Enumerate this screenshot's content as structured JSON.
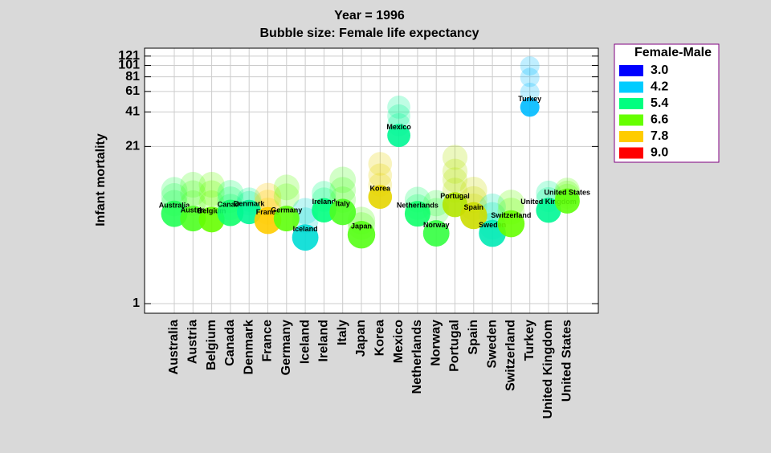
{
  "chart_data": {
    "type": "bubble",
    "title": "Year = 1996",
    "subtitle": "Bubble size: Female life expectancy",
    "y_label": "Infant mortality",
    "log_y": true,
    "grid": true,
    "ylim": [
      0.83,
      141
    ],
    "yticks": [
      1,
      21,
      41,
      61,
      81,
      101,
      121
    ],
    "categories": [
      "Australia",
      "Austria",
      "Belgium",
      "Canada",
      "Denmark",
      "France",
      "Germany",
      "Iceland",
      "Ireland",
      "Italy",
      "Japan",
      "Korea",
      "Mexico",
      "Netherlands",
      "Norway",
      "Portugal",
      "Spain",
      "Sweden",
      "Switzerland",
      "Turkey",
      "United Kingdom",
      "United States"
    ],
    "values": [
      5.7,
      5.2,
      5.1,
      5.8,
      5.9,
      5.0,
      5.2,
      3.6,
      6.1,
      5.9,
      3.8,
      7.9,
      26,
      5.7,
      3.9,
      6.8,
      5.5,
      3.9,
      4.7,
      45,
      6.1,
      7.3
    ],
    "sizes": [
      81,
      80,
      80,
      81,
      78,
      82,
      80,
      81,
      78,
      81,
      83,
      77,
      76,
      80,
      81,
      79,
      82,
      82,
      82,
      70,
      79,
      79
    ],
    "color_values": [
      5.8,
      6.3,
      6.6,
      5.6,
      5.2,
      7.8,
      6.5,
      4.6,
      5.4,
      6.3,
      6.4,
      7.6,
      5.2,
      5.6,
      6.0,
      7.2,
      7.4,
      4.9,
      6.6,
      4.1,
      5.2,
      6.5
    ],
    "trails": [
      [
        9,
        8,
        7
      ],
      [
        10,
        8.5,
        7
      ],
      [
        10,
        8.5,
        7
      ],
      [
        8.5,
        7.5,
        6.5
      ],
      [
        7.5,
        7
      ],
      [
        8,
        7,
        6
      ],
      [
        9.5,
        8
      ],
      [
        6,
        5
      ],
      [
        8.5,
        7.5
      ],
      [
        11,
        9,
        7.5
      ],
      [
        5,
        4.5
      ],
      [
        15,
        12,
        10
      ],
      [
        45,
        38,
        32
      ],
      [
        7.5,
        6.5
      ],
      [
        7,
        6
      ],
      [
        17,
        13,
        11,
        9
      ],
      [
        9,
        7.5,
        6.5
      ],
      [
        6.5,
        5.5,
        4.5
      ],
      [
        7,
        6
      ],
      [
        100,
        80,
        60
      ],
      [
        8.5,
        7.5
      ],
      [
        9,
        8.5,
        8
      ]
    ],
    "legend_title": "Female-Male",
    "legend": [
      {
        "value": 3.0,
        "label": "3.0"
      },
      {
        "value": 4.2,
        "label": "4.2"
      },
      {
        "value": 5.4,
        "label": "5.4"
      },
      {
        "value": 6.6,
        "label": "6.6"
      },
      {
        "value": 7.8,
        "label": "7.8"
      },
      {
        "value": 9.0,
        "label": "9.0"
      }
    ],
    "legend_colors": [
      "#0000ff",
      "#00ccff",
      "#00ff80",
      "#66ff00",
      "#ffcc00",
      "#ff0000"
    ]
  }
}
